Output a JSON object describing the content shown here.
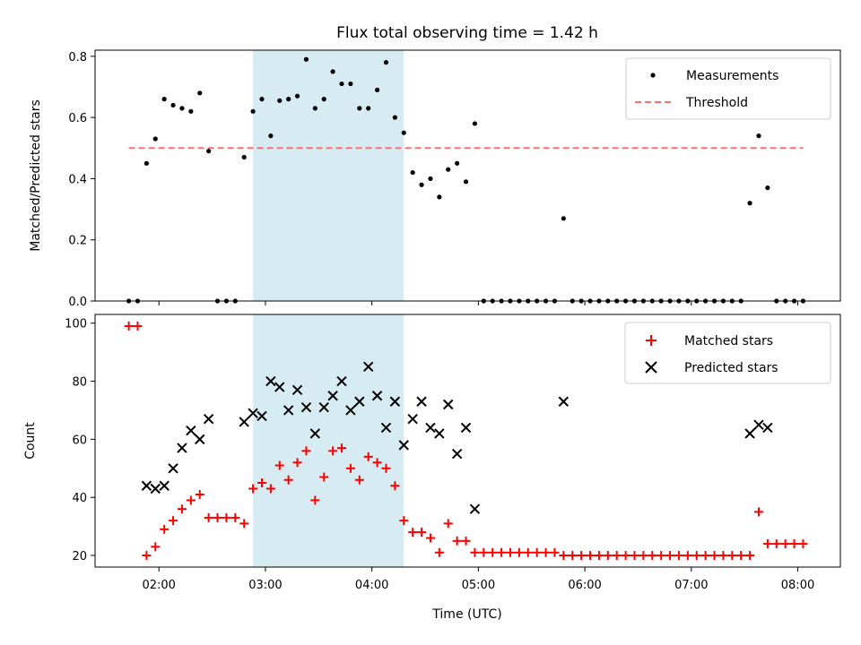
{
  "chart_data": {
    "title": "Flux total observing time = 1.42 h",
    "shaded_region": {
      "start": "02:53",
      "end": "04:18",
      "color": "#add8e6"
    },
    "xlabel": "Time (UTC)",
    "x_ticks": [
      "02:00",
      "03:00",
      "04:00",
      "05:00",
      "06:00",
      "07:00",
      "08:00"
    ],
    "top": {
      "type": "scatter",
      "ylabel": "Matched/Predicted stars",
      "ylim": [
        0,
        0.82
      ],
      "y_ticks": [
        "0.0",
        "0.2",
        "0.4",
        "0.6",
        "0.8"
      ],
      "threshold": {
        "name": "Threshold",
        "value": 0.5,
        "color": "#ff6f6f",
        "from": "01:43",
        "to": "08:03"
      },
      "series_name": "Measurements",
      "points": [
        [
          "01:43",
          0
        ],
        [
          "01:48",
          0
        ],
        [
          "01:53",
          0.45
        ],
        [
          "01:58",
          0.53
        ],
        [
          "02:03",
          0.66
        ],
        [
          "02:08",
          0.64
        ],
        [
          "02:13",
          0.63
        ],
        [
          "02:18",
          0.62
        ],
        [
          "02:23",
          0.68
        ],
        [
          "02:28",
          0.49
        ],
        [
          "02:33",
          0
        ],
        [
          "02:38",
          0
        ],
        [
          "02:43",
          0
        ],
        [
          "02:48",
          0.47
        ],
        [
          "02:53",
          0.62
        ],
        [
          "02:58",
          0.66
        ],
        [
          "03:03",
          0.54
        ],
        [
          "03:08",
          0.655
        ],
        [
          "03:13",
          0.66
        ],
        [
          "03:18",
          0.67
        ],
        [
          "03:23",
          0.79
        ],
        [
          "03:28",
          0.63
        ],
        [
          "03:33",
          0.66
        ],
        [
          "03:38",
          0.75
        ],
        [
          "03:43",
          0.71
        ],
        [
          "03:48",
          0.71
        ],
        [
          "03:53",
          0.63
        ],
        [
          "03:58",
          0.63
        ],
        [
          "04:03",
          0.69
        ],
        [
          "04:08",
          0.78
        ],
        [
          "04:13",
          0.6
        ],
        [
          "04:18",
          0.55
        ],
        [
          "04:23",
          0.42
        ],
        [
          "04:28",
          0.38
        ],
        [
          "04:33",
          0.4
        ],
        [
          "04:38",
          0.34
        ],
        [
          "04:43",
          0.43
        ],
        [
          "04:48",
          0.45
        ],
        [
          "04:53",
          0.39
        ],
        [
          "04:58",
          0.58
        ],
        [
          "05:03",
          0
        ],
        [
          "05:08",
          0
        ],
        [
          "05:13",
          0
        ],
        [
          "05:18",
          0
        ],
        [
          "05:23",
          0
        ],
        [
          "05:28",
          0
        ],
        [
          "05:33",
          0
        ],
        [
          "05:38",
          0
        ],
        [
          "05:43",
          0
        ],
        [
          "05:48",
          0.27
        ],
        [
          "05:53",
          0
        ],
        [
          "05:58",
          0
        ],
        [
          "06:03",
          0
        ],
        [
          "06:08",
          0
        ],
        [
          "06:13",
          0
        ],
        [
          "06:18",
          0
        ],
        [
          "06:23",
          0
        ],
        [
          "06:28",
          0
        ],
        [
          "06:33",
          0
        ],
        [
          "06:38",
          0
        ],
        [
          "06:43",
          0
        ],
        [
          "06:48",
          0
        ],
        [
          "06:53",
          0
        ],
        [
          "06:58",
          0
        ],
        [
          "07:03",
          0
        ],
        [
          "07:08",
          0
        ],
        [
          "07:13",
          0
        ],
        [
          "07:18",
          0
        ],
        [
          "07:23",
          0
        ],
        [
          "07:28",
          0
        ],
        [
          "07:33",
          0.32
        ],
        [
          "07:38",
          0.54
        ],
        [
          "07:43",
          0.37
        ],
        [
          "07:48",
          0
        ],
        [
          "07:53",
          0
        ],
        [
          "07:58",
          0
        ],
        [
          "08:03",
          0
        ]
      ]
    },
    "bottom": {
      "type": "scatter",
      "ylabel": "Count",
      "ylim": [
        16,
        103
      ],
      "y_ticks": [
        "20",
        "40",
        "60",
        "80",
        "100"
      ],
      "series": [
        {
          "name": "Matched stars",
          "marker": "plus",
          "color": "#ff0000",
          "points": [
            [
              "01:43",
              99
            ],
            [
              "01:48",
              99
            ],
            [
              "01:53",
              20
            ],
            [
              "01:58",
              23
            ],
            [
              "02:03",
              29
            ],
            [
              "02:08",
              32
            ],
            [
              "02:13",
              36
            ],
            [
              "02:18",
              39
            ],
            [
              "02:23",
              41
            ],
            [
              "02:28",
              33
            ],
            [
              "02:33",
              33
            ],
            [
              "02:38",
              33
            ],
            [
              "02:43",
              33
            ],
            [
              "02:48",
              31
            ],
            [
              "02:53",
              43
            ],
            [
              "02:58",
              45
            ],
            [
              "03:03",
              43
            ],
            [
              "03:08",
              51
            ],
            [
              "03:13",
              46
            ],
            [
              "03:18",
              52
            ],
            [
              "03:23",
              56
            ],
            [
              "03:28",
              39
            ],
            [
              "03:33",
              47
            ],
            [
              "03:38",
              56
            ],
            [
              "03:43",
              57
            ],
            [
              "03:48",
              50
            ],
            [
              "03:53",
              46
            ],
            [
              "03:58",
              54
            ],
            [
              "04:03",
              52
            ],
            [
              "04:08",
              50
            ],
            [
              "04:13",
              44
            ],
            [
              "04:18",
              32
            ],
            [
              "04:23",
              28
            ],
            [
              "04:28",
              28
            ],
            [
              "04:33",
              26
            ],
            [
              "04:38",
              21
            ],
            [
              "04:43",
              31
            ],
            [
              "04:48",
              25
            ],
            [
              "04:53",
              25
            ],
            [
              "04:58",
              21
            ],
            [
              "05:03",
              21
            ],
            [
              "05:08",
              21
            ],
            [
              "05:13",
              21
            ],
            [
              "05:18",
              21
            ],
            [
              "05:23",
              21
            ],
            [
              "05:28",
              21
            ],
            [
              "05:33",
              21
            ],
            [
              "05:38",
              21
            ],
            [
              "05:43",
              21
            ],
            [
              "05:48",
              20
            ],
            [
              "05:53",
              20
            ],
            [
              "05:58",
              20
            ],
            [
              "06:03",
              20
            ],
            [
              "06:08",
              20
            ],
            [
              "06:13",
              20
            ],
            [
              "06:18",
              20
            ],
            [
              "06:23",
              20
            ],
            [
              "06:28",
              20
            ],
            [
              "06:33",
              20
            ],
            [
              "06:38",
              20
            ],
            [
              "06:43",
              20
            ],
            [
              "06:48",
              20
            ],
            [
              "06:53",
              20
            ],
            [
              "06:58",
              20
            ],
            [
              "07:03",
              20
            ],
            [
              "07:08",
              20
            ],
            [
              "07:13",
              20
            ],
            [
              "07:18",
              20
            ],
            [
              "07:23",
              20
            ],
            [
              "07:28",
              20
            ],
            [
              "07:33",
              20
            ],
            [
              "07:38",
              35
            ],
            [
              "07:43",
              24
            ],
            [
              "07:48",
              24
            ],
            [
              "07:53",
              24
            ],
            [
              "07:58",
              24
            ],
            [
              "08:03",
              24
            ]
          ]
        },
        {
          "name": "Predicted stars",
          "marker": "x",
          "color": "#000000",
          "points": [
            [
              "01:53",
              44
            ],
            [
              "01:58",
              43
            ],
            [
              "02:03",
              44
            ],
            [
              "02:08",
              50
            ],
            [
              "02:13",
              57
            ],
            [
              "02:18",
              63
            ],
            [
              "02:23",
              60
            ],
            [
              "02:28",
              67
            ],
            [
              "02:48",
              66
            ],
            [
              "02:53",
              69
            ],
            [
              "02:58",
              68
            ],
            [
              "03:03",
              80
            ],
            [
              "03:08",
              78
            ],
            [
              "03:13",
              70
            ],
            [
              "03:18",
              77
            ],
            [
              "03:23",
              71
            ],
            [
              "03:28",
              62
            ],
            [
              "03:33",
              71
            ],
            [
              "03:38",
              75
            ],
            [
              "03:43",
              80
            ],
            [
              "03:48",
              70
            ],
            [
              "03:53",
              73
            ],
            [
              "03:58",
              85
            ],
            [
              "04:03",
              75
            ],
            [
              "04:08",
              64
            ],
            [
              "04:13",
              73
            ],
            [
              "04:18",
              58
            ],
            [
              "04:23",
              67
            ],
            [
              "04:28",
              73
            ],
            [
              "04:33",
              64
            ],
            [
              "04:38",
              62
            ],
            [
              "04:43",
              72
            ],
            [
              "04:48",
              55
            ],
            [
              "04:53",
              64
            ],
            [
              "04:58",
              36
            ],
            [
              "05:48",
              73
            ],
            [
              "07:33",
              62
            ],
            [
              "07:38",
              65
            ],
            [
              "07:43",
              64
            ]
          ]
        }
      ]
    }
  }
}
